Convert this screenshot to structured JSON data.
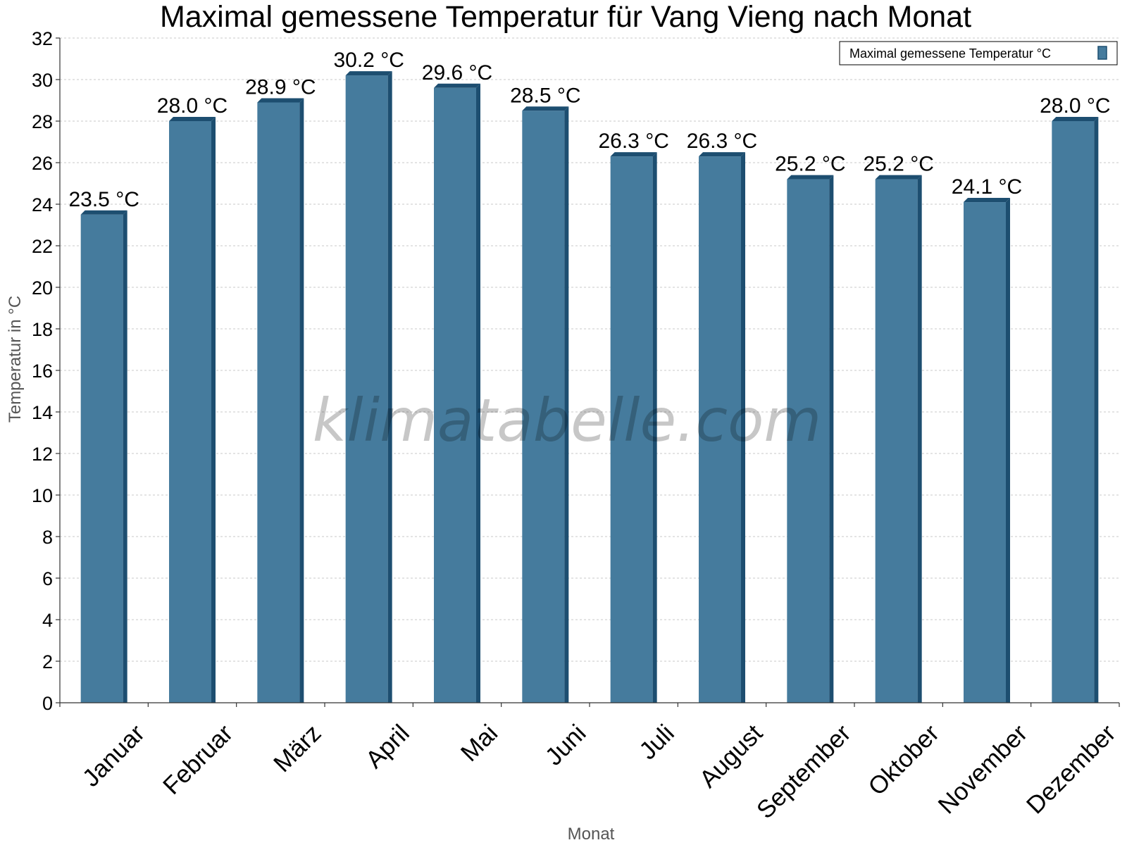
{
  "chart_data": {
    "type": "bar",
    "title": "Maximal gemessene Temperatur für Vang Vieng nach Monat",
    "xlabel": "Monat",
    "ylabel": "Temperatur in °C",
    "categories": [
      "Januar",
      "Februar",
      "März",
      "April",
      "Mai",
      "Juni",
      "Juli",
      "August",
      "September",
      "Oktober",
      "November",
      "Dezember"
    ],
    "series": [
      {
        "name": "Maximal gemessene Temperatur °C",
        "values": [
          23.5,
          28.0,
          28.9,
          30.2,
          29.6,
          28.5,
          26.3,
          26.3,
          25.2,
          25.2,
          24.1,
          28.0
        ],
        "labels": [
          "23.5 °C",
          "28.0 °C",
          "28.9 °C",
          "30.2 °C",
          "29.6 °C",
          "28.5 °C",
          "26.3 °C",
          "26.3 °C",
          "25.2 °C",
          "25.2 °C",
          "24.1 °C",
          "28.0 °C"
        ],
        "color": "#457b9d",
        "edge_color": "#1d4e70"
      }
    ],
    "ylim": [
      0,
      32
    ],
    "yticks": [
      0,
      2,
      4,
      6,
      8,
      10,
      12,
      14,
      16,
      18,
      20,
      22,
      24,
      26,
      28,
      30,
      32
    ],
    "grid": true,
    "legend_position": "top-right"
  },
  "watermark": "klimatabelle.com"
}
